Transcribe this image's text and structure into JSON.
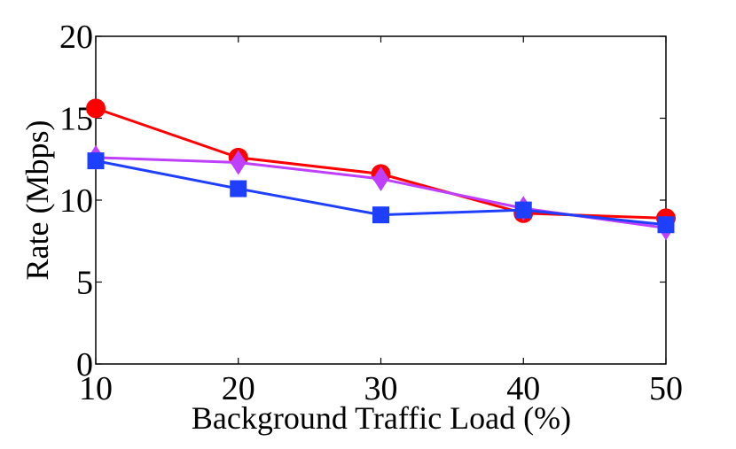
{
  "chart_data": {
    "type": "line",
    "title": "",
    "xlabel": "Background Traffic Load (%)",
    "ylabel": "Rate (Mbps)",
    "x": [
      10,
      20,
      30,
      40,
      50
    ],
    "xlim": [
      10,
      50
    ],
    "ylim": [
      0,
      20
    ],
    "xticks": [
      "10",
      "20",
      "30",
      "40",
      "50"
    ],
    "yticks": [
      "0",
      "5",
      "10",
      "15",
      "20"
    ],
    "grid": false,
    "legend": "none",
    "series": [
      {
        "name": "series-red-circle",
        "marker": "circle",
        "color": "#ff0000",
        "values": [
          15.6,
          12.6,
          11.6,
          9.2,
          8.9
        ]
      },
      {
        "name": "series-magenta-diamond",
        "marker": "diamond",
        "color": "#bf3fff",
        "values": [
          12.6,
          12.3,
          11.3,
          9.5,
          8.3
        ]
      },
      {
        "name": "series-blue-square",
        "marker": "square",
        "color": "#1f3fff",
        "values": [
          12.4,
          10.7,
          9.1,
          9.4,
          8.5
        ]
      }
    ]
  }
}
